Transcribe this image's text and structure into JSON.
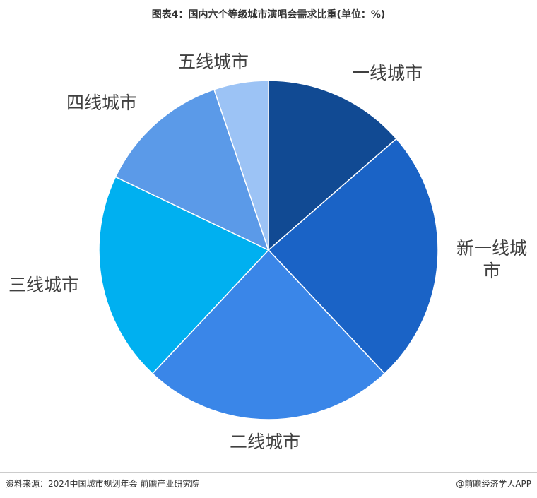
{
  "chart_data": {
    "type": "pie",
    "title": "图表4：国内六个等级城市演唱会需求比重(单位：%)",
    "categories": [
      "一线城市",
      "新一线城市",
      "二线城市",
      "三线城市",
      "四线城市",
      "五线城市"
    ],
    "values": [
      13.6,
      24.4,
      24.0,
      20.1,
      12.7,
      5.2
    ],
    "colors": [
      "#114a93",
      "#1a63c6",
      "#3a86e8",
      "#00b0f0",
      "#5b9ae8",
      "#9cc3f5"
    ],
    "source": "资料来源：2024中国城市规划年会 前瞻产业研究院",
    "credit": "@前瞻经济学人APP"
  }
}
